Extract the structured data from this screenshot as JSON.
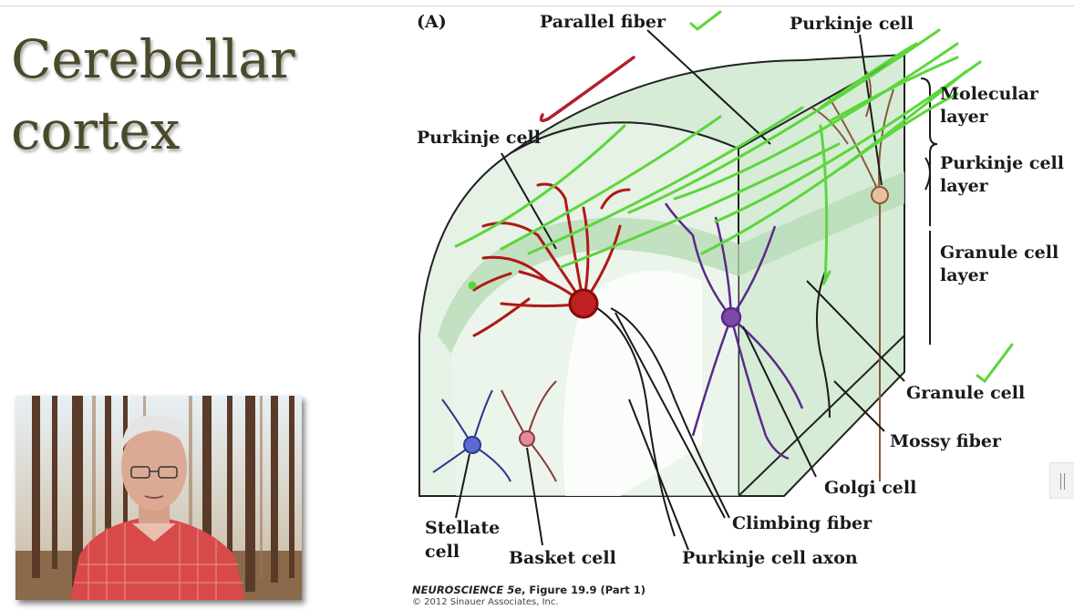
{
  "slide": {
    "title_line1": "Cerebellar",
    "title_line2": "cortex"
  },
  "figure": {
    "panel_label": "(A)",
    "labels": {
      "parallel_fiber": "Parallel fiber",
      "purkinje_cell_top": "Purkinje cell",
      "purkinje_cell_left": "Purkinje cell",
      "molecular_layer_1": "Molecular",
      "molecular_layer_2": "layer",
      "purkinje_layer_1": "Purkinje cell",
      "purkinje_layer_2": "layer",
      "granule_layer_1": "Granule cell",
      "granule_layer_2": "layer",
      "granule_cell": "Granule cell",
      "mossy_fiber": "Mossy fiber",
      "golgi_cell": "Golgi cell",
      "climbing_fiber": "Climbing fiber",
      "purkinje_axon": "Purkinje cell axon",
      "stellate_1": "Stellate",
      "stellate_2": "cell",
      "basket_cell": "Basket cell"
    },
    "caption_figure_prefix": "NEUROSCIENCE 5e",
    "caption_figure_suffix": ", Figure 19.9 (Part 1)",
    "caption_copyright": "© 2012 Sinauer Associates, Inc."
  },
  "colors": {
    "title": "#4a4a2a",
    "annotation_green": "#5cd63c",
    "annotation_red": "#b0202a",
    "purkinje_red": "#b01818",
    "golgi_purple": "#5a2a8a",
    "stellate_blue": "#2a3a8a",
    "tissue_green": "#d8ecd8"
  }
}
